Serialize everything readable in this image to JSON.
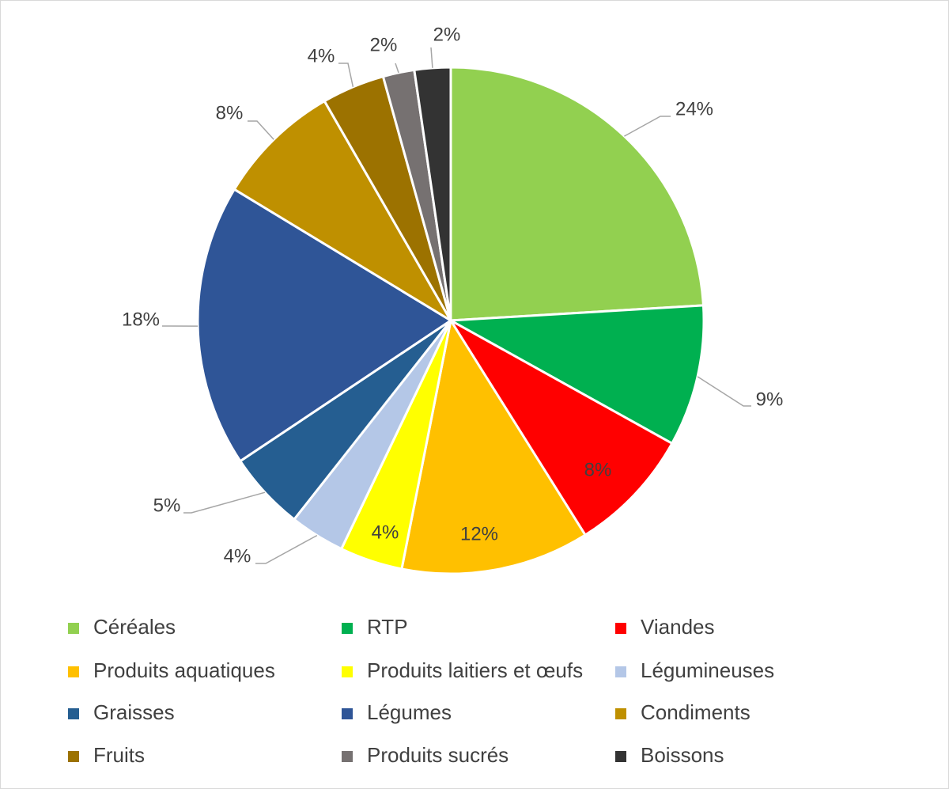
{
  "chart_data": {
    "type": "pie",
    "title": "",
    "legend_position": "bottom",
    "start_angle_deg": 0,
    "direction": "clockwise",
    "slices": [
      {
        "label": "Céréales",
        "value": 24,
        "value_label": "24%",
        "color": "#92d050",
        "label_placement": "outside"
      },
      {
        "label": "RTP",
        "value": 9,
        "value_label": "9%",
        "color": "#00b050",
        "label_placement": "outside"
      },
      {
        "label": "Viandes",
        "value": 8,
        "value_label": "8%",
        "color": "#ff0000",
        "label_placement": "inside"
      },
      {
        "label": "Produits aquatiques",
        "value": 12,
        "value_label": "12%",
        "color": "#ffc000",
        "label_placement": "inside"
      },
      {
        "label": "Produits laitiers et œufs",
        "value": 4,
        "value_label": "4%",
        "color": "#ffff00",
        "label_placement": "inside"
      },
      {
        "label": "Légumineuses",
        "value": 3.5,
        "value_label": "4%",
        "color": "#b4c7e7",
        "label_placement": "outside"
      },
      {
        "label": "Graisses",
        "value": 5,
        "value_label": "5%",
        "color": "#255e91",
        "label_placement": "outside"
      },
      {
        "label": "Légumes",
        "value": 18,
        "value_label": "18%",
        "color": "#2f5597",
        "label_placement": "outside"
      },
      {
        "label": "Condiments",
        "value": 8,
        "value_label": "8%",
        "color": "#bf9000",
        "label_placement": "outside"
      },
      {
        "label": "Fruits",
        "value": 4,
        "value_label": "4%",
        "color": "#9c7200",
        "label_placement": "outside"
      },
      {
        "label": "Produits sucrés",
        "value": 2,
        "value_label": "2%",
        "color": "#767171",
        "label_placement": "outside"
      },
      {
        "label": "Boissons",
        "value": 2.3,
        "value_label": "2%",
        "color": "#333333",
        "label_placement": "outside"
      }
    ]
  }
}
